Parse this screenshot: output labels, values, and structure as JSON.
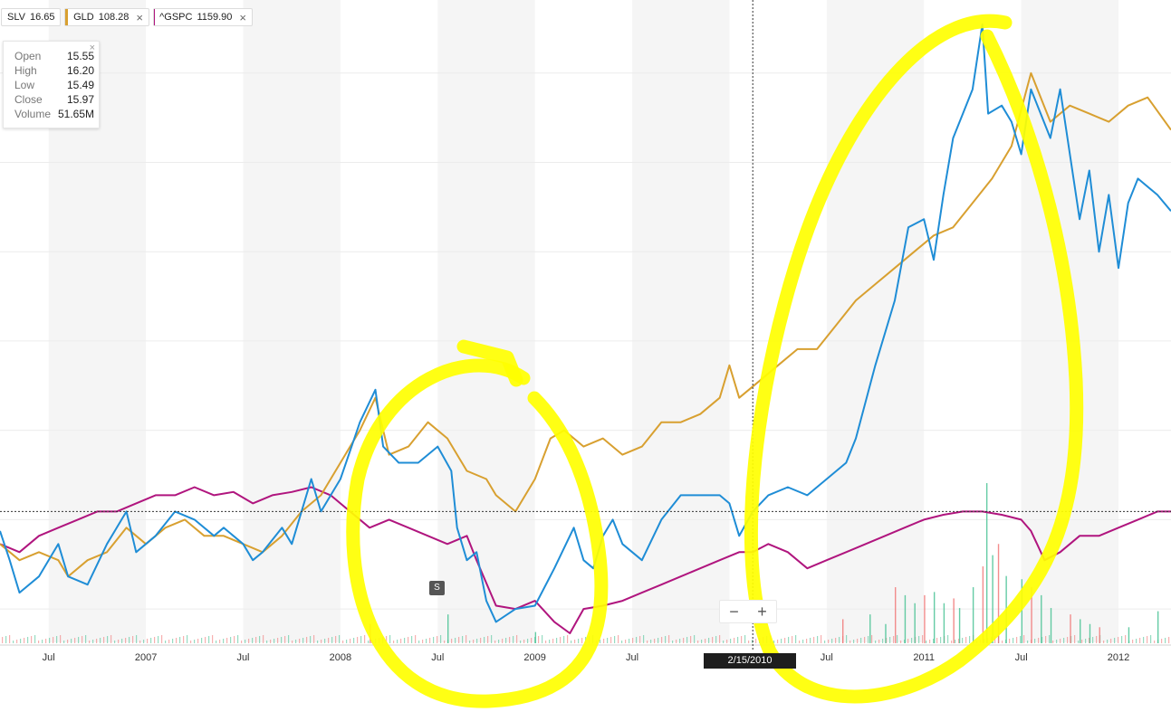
{
  "legend": {
    "items": [
      {
        "symbol": "SLV",
        "value": "16.65",
        "color": "#1f8dd6",
        "closable": false
      },
      {
        "symbol": "GLD",
        "value": "108.28",
        "color": "#d8a030",
        "closable": true
      },
      {
        "symbol": "^GSPC",
        "value": "1159.90",
        "color": "#b0157e",
        "closable": true
      }
    ],
    "close_glyph": "×"
  },
  "ohlc_panel": {
    "rows": [
      {
        "label": "Open",
        "value": "15.55"
      },
      {
        "label": "High",
        "value": "16.20"
      },
      {
        "label": "Low",
        "value": "15.49"
      },
      {
        "label": "Close",
        "value": "15.97"
      },
      {
        "label": "Volume",
        "value": "51.65M"
      }
    ],
    "close_glyph": "×"
  },
  "zoom": {
    "minus": "−",
    "plus": "+"
  },
  "split_marker": "S",
  "crosshair_date": "2/15/2010",
  "colors": {
    "slv": "#1f8dd6",
    "gld": "#d8a030",
    "gspc": "#b0157e",
    "annotation": "#ffff00",
    "vol_up": "#3fbf8f",
    "vol_down": "#f07070"
  },
  "chart_data": {
    "type": "line",
    "x_axis": {
      "start": "2006.25",
      "end": "2012.27",
      "ticks": [
        {
          "x": 2006.5,
          "label": "Jul"
        },
        {
          "x": 2007.0,
          "label": "2007"
        },
        {
          "x": 2007.5,
          "label": "Jul"
        },
        {
          "x": 2008.0,
          "label": "2008"
        },
        {
          "x": 2008.5,
          "label": "Jul"
        },
        {
          "x": 2009.0,
          "label": "2009"
        },
        {
          "x": 2009.5,
          "label": "Jul"
        },
        {
          "x": 2010.5,
          "label": "Jul"
        },
        {
          "x": 2011.0,
          "label": "2011"
        },
        {
          "x": 2011.5,
          "label": "Jul"
        },
        {
          "x": 2012.0,
          "label": "2012"
        }
      ]
    },
    "y_axis": {
      "unit": "percent change",
      "range": [
        -55,
        335
      ]
    },
    "crosshair": {
      "x": 2010.12,
      "y": 20
    },
    "series": [
      {
        "name": "SLV",
        "key": "slv",
        "points": [
          [
            2006.25,
            8
          ],
          [
            2006.3,
            -10
          ],
          [
            2006.35,
            -30
          ],
          [
            2006.45,
            -20
          ],
          [
            2006.55,
            0
          ],
          [
            2006.6,
            -20
          ],
          [
            2006.7,
            -25
          ],
          [
            2006.8,
            0
          ],
          [
            2006.9,
            20
          ],
          [
            2006.95,
            -5
          ],
          [
            2007.05,
            5
          ],
          [
            2007.15,
            20
          ],
          [
            2007.25,
            15
          ],
          [
            2007.35,
            5
          ],
          [
            2007.4,
            10
          ],
          [
            2007.5,
            0
          ],
          [
            2007.55,
            -10
          ],
          [
            2007.6,
            -5
          ],
          [
            2007.7,
            10
          ],
          [
            2007.75,
            0
          ],
          [
            2007.85,
            40
          ],
          [
            2007.9,
            20
          ],
          [
            2008.0,
            40
          ],
          [
            2008.1,
            75
          ],
          [
            2008.18,
            95
          ],
          [
            2008.22,
            60
          ],
          [
            2008.3,
            50
          ],
          [
            2008.4,
            50
          ],
          [
            2008.5,
            60
          ],
          [
            2008.57,
            45
          ],
          [
            2008.6,
            10
          ],
          [
            2008.65,
            -10
          ],
          [
            2008.7,
            -5
          ],
          [
            2008.75,
            -35
          ],
          [
            2008.8,
            -48
          ],
          [
            2008.9,
            -40
          ],
          [
            2009.0,
            -38
          ],
          [
            2009.1,
            -15
          ],
          [
            2009.2,
            10
          ],
          [
            2009.25,
            -10
          ],
          [
            2009.3,
            -15
          ],
          [
            2009.35,
            5
          ],
          [
            2009.4,
            15
          ],
          [
            2009.45,
            0
          ],
          [
            2009.55,
            -10
          ],
          [
            2009.65,
            15
          ],
          [
            2009.75,
            30
          ],
          [
            2009.85,
            30
          ],
          [
            2009.95,
            30
          ],
          [
            2010.0,
            25
          ],
          [
            2010.05,
            5
          ],
          [
            2010.12,
            20
          ],
          [
            2010.2,
            30
          ],
          [
            2010.3,
            35
          ],
          [
            2010.4,
            30
          ],
          [
            2010.5,
            40
          ],
          [
            2010.6,
            50
          ],
          [
            2010.65,
            65
          ],
          [
            2010.75,
            110
          ],
          [
            2010.85,
            150
          ],
          [
            2010.92,
            195
          ],
          [
            2011.0,
            200
          ],
          [
            2011.05,
            175
          ],
          [
            2011.1,
            215
          ],
          [
            2011.15,
            250
          ],
          [
            2011.2,
            265
          ],
          [
            2011.25,
            280
          ],
          [
            2011.3,
            320
          ],
          [
            2011.33,
            265
          ],
          [
            2011.4,
            270
          ],
          [
            2011.45,
            260
          ],
          [
            2011.5,
            240
          ],
          [
            2011.55,
            280
          ],
          [
            2011.65,
            250
          ],
          [
            2011.7,
            280
          ],
          [
            2011.8,
            200
          ],
          [
            2011.85,
            230
          ],
          [
            2011.9,
            180
          ],
          [
            2011.95,
            215
          ],
          [
            2012.0,
            170
          ],
          [
            2012.05,
            210
          ],
          [
            2012.1,
            225
          ],
          [
            2012.2,
            215
          ],
          [
            2012.27,
            205
          ]
        ]
      },
      {
        "name": "GLD",
        "key": "gld",
        "points": [
          [
            2006.25,
            0
          ],
          [
            2006.35,
            -10
          ],
          [
            2006.45,
            -5
          ],
          [
            2006.55,
            -10
          ],
          [
            2006.6,
            -20
          ],
          [
            2006.7,
            -10
          ],
          [
            2006.8,
            -5
          ],
          [
            2006.9,
            10
          ],
          [
            2007.0,
            0
          ],
          [
            2007.1,
            10
          ],
          [
            2007.2,
            15
          ],
          [
            2007.3,
            5
          ],
          [
            2007.4,
            5
          ],
          [
            2007.5,
            0
          ],
          [
            2007.6,
            -5
          ],
          [
            2007.7,
            5
          ],
          [
            2007.8,
            20
          ],
          [
            2007.9,
            30
          ],
          [
            2008.0,
            50
          ],
          [
            2008.1,
            70
          ],
          [
            2008.18,
            90
          ],
          [
            2008.25,
            55
          ],
          [
            2008.35,
            60
          ],
          [
            2008.45,
            75
          ],
          [
            2008.55,
            65
          ],
          [
            2008.65,
            45
          ],
          [
            2008.75,
            40
          ],
          [
            2008.8,
            30
          ],
          [
            2008.9,
            20
          ],
          [
            2009.0,
            40
          ],
          [
            2009.08,
            65
          ],
          [
            2009.15,
            70
          ],
          [
            2009.25,
            60
          ],
          [
            2009.35,
            65
          ],
          [
            2009.45,
            55
          ],
          [
            2009.55,
            60
          ],
          [
            2009.65,
            75
          ],
          [
            2009.75,
            75
          ],
          [
            2009.85,
            80
          ],
          [
            2009.95,
            90
          ],
          [
            2010.0,
            110
          ],
          [
            2010.05,
            90
          ],
          [
            2010.15,
            100
          ],
          [
            2010.25,
            110
          ],
          [
            2010.35,
            120
          ],
          [
            2010.45,
            120
          ],
          [
            2010.55,
            135
          ],
          [
            2010.65,
            150
          ],
          [
            2010.75,
            160
          ],
          [
            2010.85,
            170
          ],
          [
            2010.95,
            180
          ],
          [
            2011.05,
            190
          ],
          [
            2011.15,
            195
          ],
          [
            2011.25,
            210
          ],
          [
            2011.35,
            225
          ],
          [
            2011.45,
            245
          ],
          [
            2011.55,
            290
          ],
          [
            2011.65,
            260
          ],
          [
            2011.75,
            270
          ],
          [
            2011.85,
            265
          ],
          [
            2011.95,
            260
          ],
          [
            2012.05,
            270
          ],
          [
            2012.15,
            275
          ],
          [
            2012.27,
            255
          ]
        ]
      },
      {
        "name": "^GSPC",
        "key": "gspc",
        "points": [
          [
            2006.25,
            0
          ],
          [
            2006.35,
            -5
          ],
          [
            2006.45,
            5
          ],
          [
            2006.55,
            10
          ],
          [
            2006.65,
            15
          ],
          [
            2006.75,
            20
          ],
          [
            2006.85,
            20
          ],
          [
            2006.95,
            25
          ],
          [
            2007.05,
            30
          ],
          [
            2007.15,
            30
          ],
          [
            2007.25,
            35
          ],
          [
            2007.35,
            30
          ],
          [
            2007.45,
            32
          ],
          [
            2007.55,
            25
          ],
          [
            2007.65,
            30
          ],
          [
            2007.75,
            32
          ],
          [
            2007.85,
            35
          ],
          [
            2007.95,
            30
          ],
          [
            2008.05,
            20
          ],
          [
            2008.15,
            10
          ],
          [
            2008.25,
            15
          ],
          [
            2008.35,
            10
          ],
          [
            2008.45,
            5
          ],
          [
            2008.55,
            0
          ],
          [
            2008.65,
            5
          ],
          [
            2008.7,
            -10
          ],
          [
            2008.8,
            -38
          ],
          [
            2008.9,
            -40
          ],
          [
            2009.0,
            -35
          ],
          [
            2009.1,
            -48
          ],
          [
            2009.18,
            -55
          ],
          [
            2009.25,
            -40
          ],
          [
            2009.35,
            -38
          ],
          [
            2009.45,
            -35
          ],
          [
            2009.55,
            -30
          ],
          [
            2009.65,
            -25
          ],
          [
            2009.75,
            -20
          ],
          [
            2009.85,
            -15
          ],
          [
            2009.95,
            -10
          ],
          [
            2010.05,
            -5
          ],
          [
            2010.12,
            -5
          ],
          [
            2010.2,
            0
          ],
          [
            2010.3,
            -5
          ],
          [
            2010.4,
            -15
          ],
          [
            2010.5,
            -10
          ],
          [
            2010.6,
            -5
          ],
          [
            2010.7,
            0
          ],
          [
            2010.8,
            5
          ],
          [
            2010.9,
            10
          ],
          [
            2011.0,
            15
          ],
          [
            2011.1,
            18
          ],
          [
            2011.2,
            20
          ],
          [
            2011.3,
            20
          ],
          [
            2011.4,
            18
          ],
          [
            2011.5,
            15
          ],
          [
            2011.55,
            8
          ],
          [
            2011.62,
            -10
          ],
          [
            2011.7,
            -5
          ],
          [
            2011.8,
            5
          ],
          [
            2011.9,
            5
          ],
          [
            2012.0,
            10
          ],
          [
            2012.1,
            15
          ],
          [
            2012.2,
            20
          ],
          [
            2012.27,
            20
          ]
        ]
      }
    ],
    "volume": {
      "max": 100,
      "bars": [
        [
          2008.15,
          12
        ],
        [
          2008.55,
          18
        ],
        [
          2009.0,
          7
        ],
        [
          2010.58,
          15
        ],
        [
          2010.72,
          18
        ],
        [
          2010.8,
          12
        ],
        [
          2010.85,
          35
        ],
        [
          2010.9,
          30
        ],
        [
          2010.95,
          25
        ],
        [
          2011.0,
          30
        ],
        [
          2011.05,
          32
        ],
        [
          2011.1,
          25
        ],
        [
          2011.15,
          28
        ],
        [
          2011.18,
          22
        ],
        [
          2011.25,
          35
        ],
        [
          2011.3,
          48
        ],
        [
          2011.32,
          100
        ],
        [
          2011.35,
          55
        ],
        [
          2011.38,
          62
        ],
        [
          2011.42,
          42
        ],
        [
          2011.5,
          40
        ],
        [
          2011.55,
          35
        ],
        [
          2011.6,
          30
        ],
        [
          2011.65,
          22
        ],
        [
          2011.75,
          18
        ],
        [
          2011.8,
          15
        ],
        [
          2011.85,
          12
        ],
        [
          2011.9,
          10
        ],
        [
          2012.05,
          10
        ],
        [
          2012.2,
          20
        ]
      ]
    }
  }
}
